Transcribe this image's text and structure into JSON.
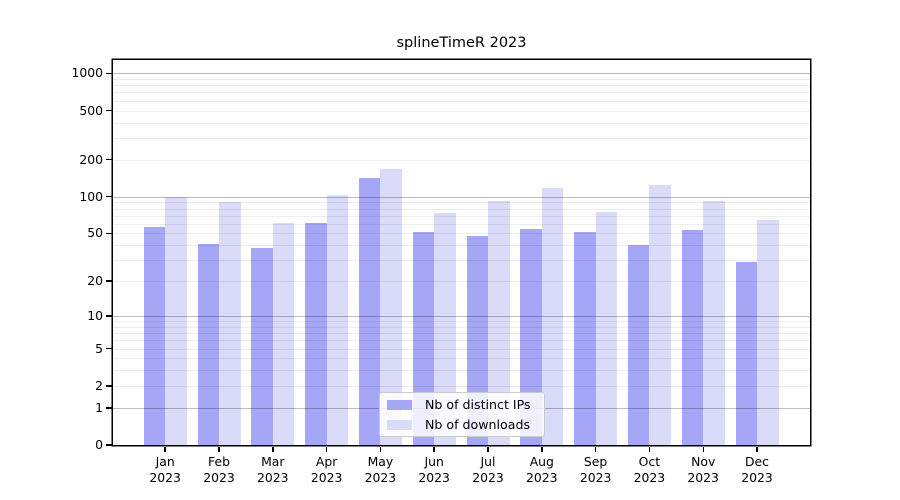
{
  "title": "splineTimeR 2023",
  "colors": {
    "ips_bar": "#a6a6f7",
    "downloads_bar": "#dadaf9",
    "spine": "#000000",
    "grid_major": "#bdbdbd",
    "grid_minor": "#ededed",
    "legend_border": "#cccccc"
  },
  "legend": {
    "items": [
      {
        "label": "Nb of distinct IPs",
        "color": "#a6a6f7"
      },
      {
        "label": "Nb of downloads",
        "color": "#dadaf9"
      }
    ]
  },
  "chart_data": {
    "type": "bar",
    "title": "splineTimeR 2023",
    "categories": [
      "Jan 2023",
      "Feb 2023",
      "Mar 2023",
      "Apr 2023",
      "May 2023",
      "Jun 2023",
      "Jul 2023",
      "Aug 2023",
      "Sep 2023",
      "Oct 2023",
      "Nov 2023",
      "Dec 2023"
    ],
    "series": [
      {
        "name": "Nb of distinct IPs",
        "color": "#a6a6f7",
        "values": [
          56,
          41,
          38,
          61,
          141,
          51,
          48,
          54,
          51,
          40,
          53,
          29
        ]
      },
      {
        "name": "Nb of downloads",
        "color": "#dadaf9",
        "values": [
          100,
          91,
          61,
          104,
          167,
          74,
          92,
          118,
          75,
          125,
          92,
          65
        ]
      }
    ],
    "xlabel": "",
    "ylabel": "",
    "yscale": "log1p",
    "yticks": [
      0,
      1,
      2,
      5,
      10,
      20,
      50,
      100,
      200,
      500,
      1000
    ],
    "ylim": [
      0,
      1280
    ],
    "grid": "horizontal; major lines at powers of 10, minor at 2-9 per decade",
    "legend_position": "lower center inside plot"
  }
}
